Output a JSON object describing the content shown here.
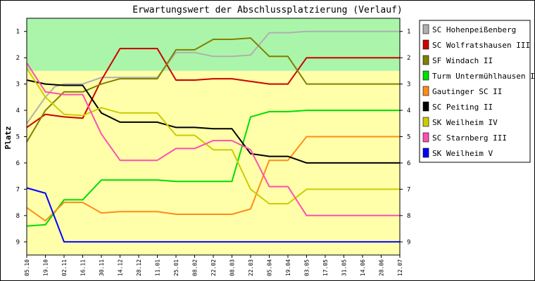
{
  "chart_data": {
    "type": "line",
    "title": "Erwartungswert der Abschlussplatzierung (Verlauf)",
    "xlabel": "",
    "ylabel": "Platz",
    "categories": [
      "05.10",
      "19.10",
      "02.11",
      "16.11",
      "30.11",
      "14.12",
      "28.12",
      "11.01",
      "25.01",
      "08.02",
      "22.02",
      "08.03",
      "22.03",
      "05.04",
      "19.04",
      "03.05",
      "17.05",
      "31.05",
      "14.06",
      "28.06",
      "12.07"
    ],
    "ylim": [
      0.5,
      9.5
    ],
    "yticks": [
      1,
      2,
      3,
      4,
      5,
      6,
      7,
      8,
      9
    ],
    "y_inverted": true,
    "background_bands": [
      {
        "from": 0.5,
        "to": 2.5,
        "color": "#aaf5aa"
      },
      {
        "from": 2.5,
        "to": 9.5,
        "color": "#ffffaa"
      }
    ],
    "legend_position": "top-right",
    "series": [
      {
        "name": "SC Hohenpeißenberg",
        "color": "#b0b0b0",
        "x": [
          0,
          1,
          1.5,
          2,
          3,
          4,
          4.5,
          5,
          6,
          6.5,
          7,
          8,
          9,
          10,
          11,
          12,
          13,
          14,
          15,
          16,
          17,
          18,
          19,
          20
        ],
        "y": [
          4.5,
          3.5,
          3.1,
          3.0,
          3.0,
          2.75,
          2.75,
          2.75,
          2.75,
          2.75,
          2.75,
          1.8,
          1.8,
          1.95,
          1.95,
          1.9,
          1.05,
          1.05,
          1.0,
          1.0,
          1.0,
          1.0,
          1.0,
          1.0
        ]
      },
      {
        "name": "SC Wolfratshausen III",
        "color": "#cc0000",
        "x": [
          0,
          1,
          2,
          3,
          4,
          5,
          6,
          7,
          8,
          9,
          10,
          11,
          12,
          13,
          14,
          15,
          16,
          17,
          18,
          19,
          20
        ],
        "y": [
          4.65,
          4.15,
          4.25,
          4.3,
          2.85,
          1.65,
          1.65,
          1.65,
          2.85,
          2.85,
          2.8,
          2.8,
          2.9,
          3.0,
          3.0,
          2.0,
          2.0,
          2.0,
          2.0,
          2.0,
          2.0
        ]
      },
      {
        "name": "SF Windach II",
        "color": "#808000",
        "x": [
          0,
          1,
          2,
          3,
          4,
          5,
          6,
          7,
          8,
          9,
          10,
          11,
          12,
          13,
          14,
          15,
          16,
          17,
          18,
          19,
          20
        ],
        "y": [
          5.2,
          4.0,
          3.3,
          3.3,
          3.0,
          2.8,
          2.8,
          2.8,
          1.7,
          1.7,
          1.3,
          1.3,
          1.25,
          1.95,
          1.95,
          3.0,
          3.0,
          3.0,
          3.0,
          3.0,
          3.0
        ]
      },
      {
        "name": "Turm Untermühlhausen II",
        "color": "#00dd00",
        "x": [
          0,
          1,
          2,
          3,
          4,
          5,
          6,
          7,
          8,
          9,
          10,
          11,
          12,
          13,
          14,
          15,
          16,
          17,
          18,
          19,
          20
        ],
        "y": [
          8.4,
          8.35,
          7.4,
          7.4,
          6.65,
          6.65,
          6.65,
          6.65,
          6.7,
          6.7,
          6.7,
          6.7,
          4.25,
          4.05,
          4.05,
          4.0,
          4.0,
          4.0,
          4.0,
          4.0,
          4.0
        ]
      },
      {
        "name": "Gautinger SC II",
        "color": "#ff8c1a",
        "x": [
          0,
          1,
          2,
          3,
          4,
          5,
          6,
          7,
          8,
          9,
          10,
          11,
          12,
          13,
          14,
          15,
          16,
          17,
          18,
          19,
          20
        ],
        "y": [
          7.7,
          8.2,
          7.5,
          7.5,
          7.9,
          7.85,
          7.85,
          7.85,
          7.95,
          7.95,
          7.95,
          7.95,
          7.75,
          5.9,
          5.9,
          5.0,
          5.0,
          5.0,
          5.0,
          5.0,
          5.0
        ]
      },
      {
        "name": "SC Peiting II",
        "color": "#000000",
        "x": [
          0,
          1,
          2,
          3,
          4,
          5,
          6,
          7,
          8,
          9,
          10,
          11,
          12,
          13,
          14,
          15,
          16,
          17,
          18,
          19,
          20
        ],
        "y": [
          2.85,
          3.0,
          3.05,
          3.05,
          4.1,
          4.45,
          4.45,
          4.45,
          4.65,
          4.65,
          4.7,
          4.7,
          5.65,
          5.75,
          5.75,
          6.0,
          6.0,
          6.0,
          6.0,
          6.0,
          6.0
        ]
      },
      {
        "name": "SK Weilheim IV",
        "color": "#cccc00",
        "x": [
          0,
          1,
          2,
          3,
          4,
          5,
          6,
          7,
          8,
          9,
          10,
          11,
          12,
          13,
          14,
          15,
          16,
          17,
          18,
          19,
          20
        ],
        "y": [
          2.4,
          3.5,
          4.15,
          4.2,
          3.9,
          4.1,
          4.1,
          4.1,
          4.95,
          4.95,
          5.5,
          5.5,
          7.0,
          7.55,
          7.55,
          7.0,
          7.0,
          7.0,
          7.0,
          7.0,
          7.0
        ]
      },
      {
        "name": "SC Starnberg III",
        "color": "#ff4fb0",
        "x": [
          0,
          1,
          2,
          3,
          4,
          5,
          6,
          7,
          8,
          9,
          10,
          11,
          12,
          13,
          14,
          15,
          16,
          17,
          18,
          19,
          20
        ],
        "y": [
          2.2,
          3.3,
          3.4,
          3.4,
          4.9,
          5.9,
          5.9,
          5.9,
          5.45,
          5.45,
          5.15,
          5.15,
          5.5,
          6.9,
          6.9,
          8.0,
          8.0,
          8.0,
          8.0,
          8.0,
          8.0
        ]
      },
      {
        "name": "SK Weilheim V",
        "color": "#0000ff",
        "x": [
          0,
          1,
          2,
          3,
          4,
          5,
          6,
          7,
          8,
          9,
          10,
          11,
          12,
          13,
          14,
          15,
          16,
          17,
          18,
          19,
          20
        ],
        "y": [
          6.95,
          7.15,
          9.0,
          9.0,
          9.0,
          9.0,
          9.0,
          9.0,
          9.0,
          9.0,
          9.0,
          9.0,
          9.0,
          9.0,
          9.0,
          9.0,
          9.0,
          9.0,
          9.0,
          9.0,
          9.0
        ]
      }
    ]
  }
}
